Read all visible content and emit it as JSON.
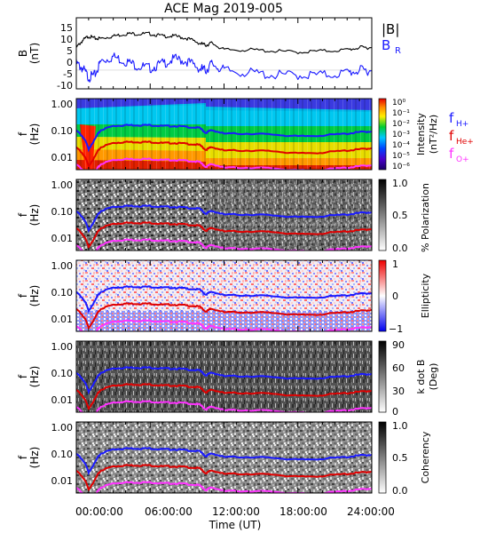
{
  "title": "ACE Mag 2019-005",
  "xlabel": "Time (UT)",
  "x_ticks": [
    "00:00:00",
    "06:00:00",
    "12:00:00",
    "18:00:00",
    "24:00:00"
  ],
  "freq_ticks": [
    "1.00",
    "0.10",
    "0.01"
  ],
  "gyro_labels": [
    {
      "name": "f",
      "sub": "H+",
      "color": "#1a1aff"
    },
    {
      "name": "f",
      "sub": "He+",
      "color": "#e00000"
    },
    {
      "name": "f",
      "sub": "O+",
      "color": "#ff33ff"
    }
  ],
  "panels": {
    "field": {
      "ylabel_top": "B",
      "ylabel_unit": "(nT)",
      "y_ticks": [
        "15",
        "10",
        "5",
        "0",
        "-5",
        "-10"
      ],
      "legend": [
        {
          "name": "|B|",
          "color": "#000000"
        },
        {
          "name": "B",
          "sub": "R",
          "color": "#1a1aff"
        }
      ]
    },
    "intensity": {
      "ylabel_top": "f",
      "ylabel_unit": "(Hz)",
      "cbar_labels": [
        "Intensity",
        "(nT²/Hz)"
      ],
      "cbar_ticks": [
        "10⁰",
        "10⁻¹",
        "10⁻²",
        "10⁻³",
        "10⁻⁴",
        "10⁻⁵",
        "10⁻⁶"
      ]
    },
    "polarization": {
      "ylabel_top": "f",
      "ylabel_unit": "(Hz)",
      "cbar_labels": [
        "% Polarization"
      ],
      "cbar_ticks": [
        "1.0",
        "0.5",
        "0.0"
      ]
    },
    "ellipticity": {
      "ylabel_top": "f",
      "ylabel_unit": "(Hz)",
      "cbar_labels": [
        "Ellipticity"
      ],
      "cbar_ticks": [
        "1",
        "0",
        "−1"
      ]
    },
    "kdotb": {
      "ylabel_top": "f",
      "ylabel_unit": "(Hz)",
      "cbar_labels": [
        "k dot B",
        "(Deg)"
      ],
      "cbar_ticks": [
        "90",
        "60",
        "30",
        "0"
      ]
    },
    "coherency": {
      "ylabel_top": "f",
      "ylabel_unit": "(Hz)",
      "cbar_labels": [
        "Coherency"
      ],
      "cbar_ticks": [
        "1.0",
        "0.5",
        "0.0"
      ]
    }
  },
  "chart_data": {
    "type": "line",
    "title": "ACE Mag 2019-005",
    "xlabel": "Time (UT)",
    "x_unit": "hours UT",
    "xlim": [
      0,
      24
    ],
    "grid": false,
    "x": [
      0,
      0.5,
      1,
      1.5,
      2,
      3,
      4,
      5,
      6,
      7,
      8,
      9,
      10,
      10.5,
      11,
      12,
      14,
      16,
      18,
      20,
      22,
      23,
      24
    ],
    "series": [
      {
        "name": "|B|",
        "values": [
          6,
          9,
          11,
          10,
          10,
          11,
          12,
          12,
          12,
          11,
          11,
          10,
          8,
          7,
          8,
          5,
          5,
          4.5,
          4,
          4.5,
          5,
          6,
          6
        ]
      },
      {
        "name": "B_R",
        "values": [
          -1,
          -3,
          -7,
          -6,
          0,
          2,
          0,
          -2,
          -3,
          -1,
          1,
          0,
          -3,
          -4,
          -1,
          -4,
          -5,
          -6,
          -6,
          -6,
          -5,
          -4,
          -4
        ]
      },
      {
        "name": "f_H+",
        "values": [
          0.095,
          0.06,
          0.02,
          0.045,
          0.1,
          0.14,
          0.15,
          0.15,
          0.15,
          0.14,
          0.14,
          0.13,
          0.12,
          0.08,
          0.1,
          0.075,
          0.075,
          0.07,
          0.06,
          0.065,
          0.075,
          0.085,
          0.09
        ]
      },
      {
        "name": "f_He+",
        "values": [
          0.024,
          0.015,
          0.005,
          0.011,
          0.025,
          0.035,
          0.038,
          0.038,
          0.038,
          0.035,
          0.035,
          0.033,
          0.03,
          0.02,
          0.025,
          0.019,
          0.019,
          0.018,
          0.015,
          0.016,
          0.019,
          0.021,
          0.023
        ]
      },
      {
        "name": "f_O+",
        "values": [
          0.006,
          0.004,
          0.0013,
          0.003,
          0.0063,
          0.0088,
          0.0095,
          0.0095,
          0.0095,
          0.0088,
          0.0088,
          0.0083,
          0.0075,
          0.005,
          0.0063,
          0.0047,
          0.0047,
          0.0045,
          0.0038,
          0.004,
          0.0047,
          0.0053,
          0.0058
        ]
      }
    ],
    "field_ylim": [
      -12,
      19
    ],
    "freq_ylim": [
      0.004,
      1.3
    ],
    "freq_scale": "log"
  }
}
